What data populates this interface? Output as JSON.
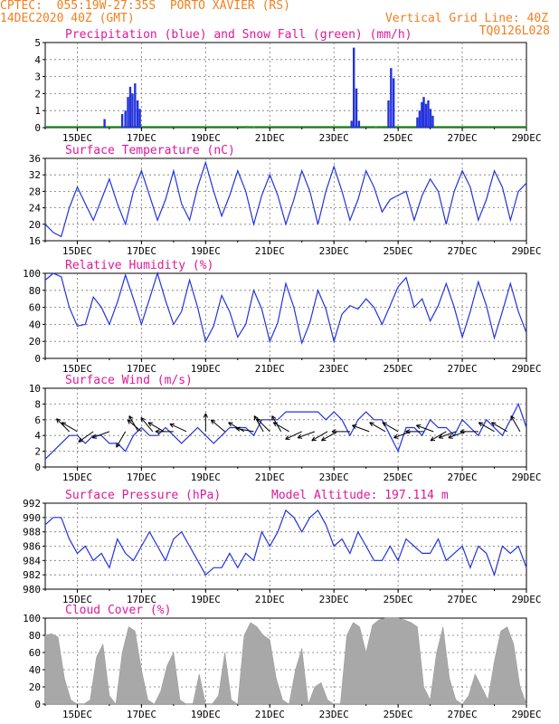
{
  "header": {
    "line1_left": "CPTEC:  055:19W-27:35S  PORTO XAVIER (RS)",
    "line2_left": "14DEC2020 40Z (GMT)",
    "line2_right": "Vertical Grid Line: 40Z",
    "line3_right": "TQ0126L028"
  },
  "colors": {
    "title": "#e0189a",
    "header": "#f08020",
    "line": "#2233dd",
    "snow": "#22aa22",
    "cloud": "#a8a8a8"
  },
  "x_axis": {
    "labels": [
      "15DEC",
      "17DEC",
      "19DEC",
      "21DEC",
      "23DEC",
      "25DEC",
      "27DEC",
      "29DEC"
    ],
    "range_days": [
      14.0,
      29.0
    ],
    "label_days": [
      15,
      17,
      19,
      21,
      23,
      25,
      27,
      29
    ]
  },
  "chart_data": [
    {
      "type": "bar",
      "title": "Precipitation (blue) and Snow Fall (green) (mm/h)",
      "ylim": [
        0,
        5
      ],
      "yticks": [
        0,
        1,
        2,
        3,
        4,
        5
      ],
      "series": [
        {
          "name": "precipitation",
          "points": [
            [
              15.85,
              0.5
            ],
            [
              16.4,
              0.8
            ],
            [
              16.5,
              1.0
            ],
            [
              16.58,
              1.8
            ],
            [
              16.65,
              2.4
            ],
            [
              16.72,
              2.0
            ],
            [
              16.8,
              2.6
            ],
            [
              16.88,
              1.6
            ],
            [
              16.95,
              1.1
            ],
            [
              23.55,
              0.4
            ],
            [
              23.62,
              4.7
            ],
            [
              23.7,
              2.3
            ],
            [
              23.78,
              0.4
            ],
            [
              24.7,
              1.6
            ],
            [
              24.78,
              3.5
            ],
            [
              24.86,
              2.9
            ],
            [
              25.6,
              0.6
            ],
            [
              25.67,
              1.0
            ],
            [
              25.74,
              1.5
            ],
            [
              25.8,
              1.8
            ],
            [
              25.87,
              1.4
            ],
            [
              25.94,
              1.6
            ],
            [
              26.01,
              1.1
            ],
            [
              26.08,
              0.7
            ]
          ]
        },
        {
          "name": "snowfall",
          "points": [
            [
              20.3,
              0.1
            ],
            [
              20.5,
              0.06
            ],
            [
              24.3,
              0.08
            ]
          ]
        }
      ]
    },
    {
      "type": "line",
      "title": "Surface Temperature (nC)",
      "ylim": [
        16,
        36
      ],
      "yticks": [
        16,
        20,
        24,
        28,
        32,
        36
      ],
      "x": [
        14.0,
        14.25,
        14.5,
        14.75,
        15.0,
        15.25,
        15.5,
        15.75,
        16.0,
        16.25,
        16.5,
        16.75,
        17.0,
        17.25,
        17.5,
        17.75,
        18.0,
        18.25,
        18.5,
        18.75,
        19.0,
        19.25,
        19.5,
        19.75,
        20.0,
        20.25,
        20.5,
        20.75,
        21.0,
        21.25,
        21.5,
        21.75,
        22.0,
        22.25,
        22.5,
        22.75,
        23.0,
        23.25,
        23.5,
        23.75,
        24.0,
        24.25,
        24.5,
        24.75,
        25.0,
        25.25,
        25.5,
        25.75,
        26.0,
        26.25,
        26.5,
        26.75,
        27.0,
        27.25,
        27.5,
        27.75,
        28.0,
        28.25,
        28.5,
        28.75,
        29.0
      ],
      "values": [
        20,
        18,
        17,
        24,
        29,
        25,
        21,
        26,
        31,
        25,
        20,
        28,
        33,
        27,
        21,
        26,
        33,
        25,
        21,
        29,
        35,
        28,
        22,
        27,
        33,
        28,
        20,
        27,
        32,
        27,
        20,
        26,
        33,
        28,
        20,
        28,
        34,
        28,
        21,
        26,
        33,
        29,
        23,
        26,
        27,
        28,
        21,
        27,
        31,
        28,
        20,
        28,
        33,
        29,
        21,
        26,
        33,
        29,
        21,
        28,
        30
      ],
      "markers": []
    },
    {
      "type": "line",
      "title": "Relative Humidity (%)",
      "ylim": [
        0,
        100
      ],
      "yticks": [
        0,
        20,
        40,
        60,
        80,
        100
      ],
      "x": [
        14.0,
        14.25,
        14.5,
        14.75,
        15.0,
        15.25,
        15.5,
        15.75,
        16.0,
        16.25,
        16.5,
        16.75,
        17.0,
        17.25,
        17.5,
        17.75,
        18.0,
        18.25,
        18.5,
        18.75,
        19.0,
        19.25,
        19.5,
        19.75,
        20.0,
        20.25,
        20.5,
        20.75,
        21.0,
        21.25,
        21.5,
        21.75,
        22.0,
        22.25,
        22.5,
        22.75,
        23.0,
        23.25,
        23.5,
        23.75,
        24.0,
        24.25,
        24.5,
        24.75,
        25.0,
        25.25,
        25.5,
        25.75,
        26.0,
        26.25,
        26.5,
        26.75,
        27.0,
        27.25,
        27.5,
        27.75,
        28.0,
        28.25,
        28.5,
        28.75,
        29.0
      ],
      "values": [
        92,
        100,
        96,
        60,
        38,
        40,
        72,
        60,
        40,
        66,
        98,
        70,
        40,
        70,
        100,
        68,
        40,
        55,
        92,
        60,
        20,
        38,
        74,
        55,
        25,
        40,
        80,
        58,
        20,
        42,
        88,
        60,
        18,
        42,
        80,
        58,
        20,
        52,
        62,
        58,
        70,
        60,
        40,
        62,
        84,
        95,
        60,
        70,
        44,
        62,
        88,
        60,
        25,
        55,
        90,
        62,
        24,
        55,
        88,
        55,
        30
      ],
      "markers": []
    },
    {
      "type": "line",
      "title": "Surface Wind (m/s)",
      "ylim": [
        0,
        10
      ],
      "yticks": [
        0,
        2,
        4,
        6,
        8,
        10
      ],
      "x": [
        14.0,
        14.25,
        14.5,
        14.75,
        15.0,
        15.25,
        15.5,
        15.75,
        16.0,
        16.25,
        16.5,
        16.75,
        17.0,
        17.25,
        17.5,
        17.75,
        18.0,
        18.25,
        18.5,
        18.75,
        19.0,
        19.25,
        19.5,
        19.75,
        20.0,
        20.25,
        20.5,
        20.75,
        21.0,
        21.25,
        21.5,
        21.75,
        22.0,
        22.25,
        22.5,
        22.75,
        23.0,
        23.25,
        23.5,
        23.75,
        24.0,
        24.25,
        24.5,
        24.75,
        25.0,
        25.25,
        25.5,
        25.75,
        26.0,
        26.25,
        26.5,
        26.75,
        27.0,
        27.25,
        27.5,
        27.75,
        28.0,
        28.25,
        28.5,
        28.75,
        29.0
      ],
      "values": [
        1,
        2,
        3,
        4,
        4,
        3,
        4,
        4,
        3,
        3,
        2,
        4,
        5,
        4,
        4,
        5,
        4,
        3,
        4,
        5,
        4,
        3,
        4,
        5,
        5,
        5,
        4,
        6,
        6,
        6,
        7,
        7,
        7,
        7,
        7,
        6,
        7,
        6,
        4,
        6,
        7,
        6,
        6,
        4,
        2,
        5,
        5,
        4,
        6,
        5,
        5,
        4,
        6,
        5,
        4,
        6,
        5,
        4,
        6,
        8,
        5
      ],
      "markers": [
        [
          14.75,
          135
        ],
        [
          15.0,
          150
        ],
        [
          15.5,
          215
        ],
        [
          16.0,
          200
        ],
        [
          16.5,
          240
        ],
        [
          16.9,
          120
        ],
        [
          17.0,
          140
        ],
        [
          17.35,
          130
        ],
        [
          17.7,
          150
        ],
        [
          18.0,
          180
        ],
        [
          18.4,
          155
        ],
        [
          19.0,
          90
        ],
        [
          19.6,
          140
        ],
        [
          20.2,
          150
        ],
        [
          20.5,
          170
        ],
        [
          20.8,
          120
        ],
        [
          21.0,
          135
        ],
        [
          21.35,
          120
        ],
        [
          21.6,
          150
        ],
        [
          22.0,
          205
        ],
        [
          22.4,
          200
        ],
        [
          22.8,
          210
        ],
        [
          23.1,
          210
        ],
        [
          23.5,
          180
        ],
        [
          24.1,
          160
        ],
        [
          24.6,
          150
        ],
        [
          25.0,
          150
        ],
        [
          25.4,
          200
        ],
        [
          25.8,
          180
        ],
        [
          26.1,
          160
        ],
        [
          26.5,
          210
        ],
        [
          26.8,
          200
        ],
        [
          27.1,
          200
        ],
        [
          27.5,
          180
        ],
        [
          28.0,
          150
        ],
        [
          28.4,
          150
        ],
        [
          28.8,
          120
        ]
      ]
    },
    {
      "type": "line",
      "title": "Surface Pressure (hPa)",
      "subtitle": "Model Altitude: 197.114 m",
      "ylim": [
        980,
        992
      ],
      "yticks": [
        980,
        982,
        984,
        986,
        988,
        990,
        992
      ],
      "x": [
        14.0,
        14.25,
        14.5,
        14.75,
        15.0,
        15.25,
        15.5,
        15.75,
        16.0,
        16.25,
        16.5,
        16.75,
        17.0,
        17.25,
        17.5,
        17.75,
        18.0,
        18.25,
        18.5,
        18.75,
        19.0,
        19.25,
        19.5,
        19.75,
        20.0,
        20.25,
        20.5,
        20.75,
        21.0,
        21.25,
        21.5,
        21.75,
        22.0,
        22.25,
        22.5,
        22.75,
        23.0,
        23.25,
        23.5,
        23.75,
        24.0,
        24.25,
        24.5,
        24.75,
        25.0,
        25.25,
        25.5,
        25.75,
        26.0,
        26.25,
        26.5,
        26.75,
        27.0,
        27.25,
        27.5,
        27.75,
        28.0,
        28.25,
        28.5,
        28.75,
        29.0
      ],
      "values": [
        989,
        990,
        990,
        987,
        985,
        986,
        984,
        985,
        983,
        987,
        985,
        984,
        986,
        988,
        986,
        984,
        987,
        988,
        986,
        984,
        982,
        983,
        983,
        985,
        983,
        985,
        984,
        988,
        986,
        988,
        991,
        990,
        988,
        990,
        991,
        989,
        986,
        987,
        985,
        988,
        986,
        984,
        984,
        986,
        984,
        987,
        986,
        985,
        985,
        987,
        984,
        985,
        986,
        983,
        986,
        985,
        982,
        986,
        985,
        986,
        983
      ],
      "markers": []
    },
    {
      "type": "bar",
      "title": "Cloud Cover (%)",
      "ylim": [
        0,
        100
      ],
      "yticks": [
        0,
        20,
        40,
        60,
        80,
        100
      ],
      "x": [
        14.0,
        14.2,
        14.4,
        14.6,
        14.8,
        15.0,
        15.2,
        15.4,
        15.6,
        15.8,
        16.0,
        16.2,
        16.4,
        16.6,
        16.8,
        17.0,
        17.2,
        17.4,
        17.6,
        17.8,
        18.0,
        18.2,
        18.4,
        18.6,
        18.8,
        19.0,
        19.2,
        19.4,
        19.6,
        19.8,
        20.0,
        20.2,
        20.4,
        20.6,
        20.8,
        21.0,
        21.2,
        21.4,
        21.6,
        21.8,
        22.0,
        22.2,
        22.4,
        22.6,
        22.8,
        23.0,
        23.2,
        23.4,
        23.6,
        23.8,
        24.0,
        24.2,
        24.4,
        24.6,
        24.8,
        25.0,
        25.2,
        25.4,
        25.6,
        25.8,
        26.0,
        26.2,
        26.4,
        26.6,
        26.8,
        27.0,
        27.2,
        27.4,
        27.6,
        27.8,
        28.0,
        28.2,
        28.4,
        28.6,
        28.8,
        29.0
      ],
      "values": [
        80,
        82,
        78,
        30,
        5,
        0,
        0,
        5,
        55,
        70,
        10,
        0,
        60,
        90,
        85,
        40,
        5,
        0,
        15,
        45,
        60,
        5,
        0,
        0,
        35,
        0,
        0,
        10,
        60,
        5,
        0,
        80,
        95,
        90,
        80,
        75,
        30,
        5,
        0,
        40,
        65,
        0,
        20,
        25,
        5,
        0,
        0,
        80,
        95,
        90,
        60,
        92,
        98,
        100,
        100,
        100,
        98,
        95,
        90,
        20,
        5,
        60,
        90,
        30,
        5,
        0,
        10,
        35,
        20,
        5,
        50,
        85,
        90,
        70,
        20,
        0
      ]
    }
  ]
}
